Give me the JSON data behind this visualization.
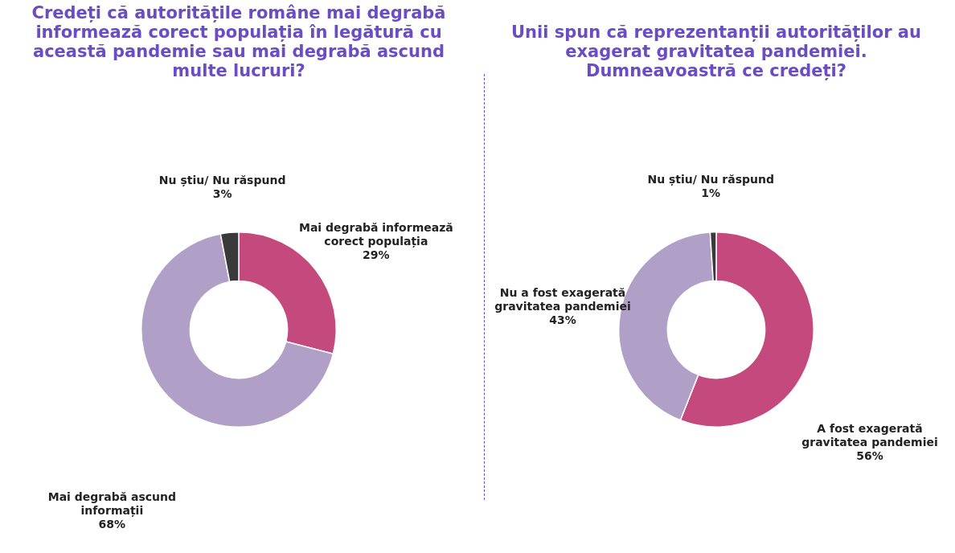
{
  "chart_data": [
    {
      "type": "donut",
      "title": "Credeți că autoritățile române mai degrabă informează corect populația în legătură cu această pandemie sau mai degrabă ascund multe lucruri?",
      "categories": [
        "Mai degrabă informează corect populația",
        "Mai degrabă ascund informații",
        "Nu știu/ Nu răspund"
      ],
      "values": [
        29,
        68,
        3
      ],
      "value_labels": [
        "29%",
        "68%",
        "3%"
      ],
      "colors": [
        "#c4497c",
        "#b09fc6",
        "#3a3a3a"
      ],
      "legend": false
    },
    {
      "type": "donut",
      "title": "Unii spun că reprezentanții autorităților au exagerat gravitatea pandemiei. Dumneavoastră ce credeți?",
      "categories": [
        "A fost exagerată gravitatea pandemiei",
        "Nu a fost exagerată gravitatea pandemiei",
        "Nu știu/ Nu răspund"
      ],
      "values": [
        56,
        43,
        1
      ],
      "value_labels": [
        "56%",
        "43%",
        "1%"
      ],
      "colors": [
        "#c4497c",
        "#b09fc6",
        "#3a3a3a"
      ],
      "legend": false
    }
  ]
}
